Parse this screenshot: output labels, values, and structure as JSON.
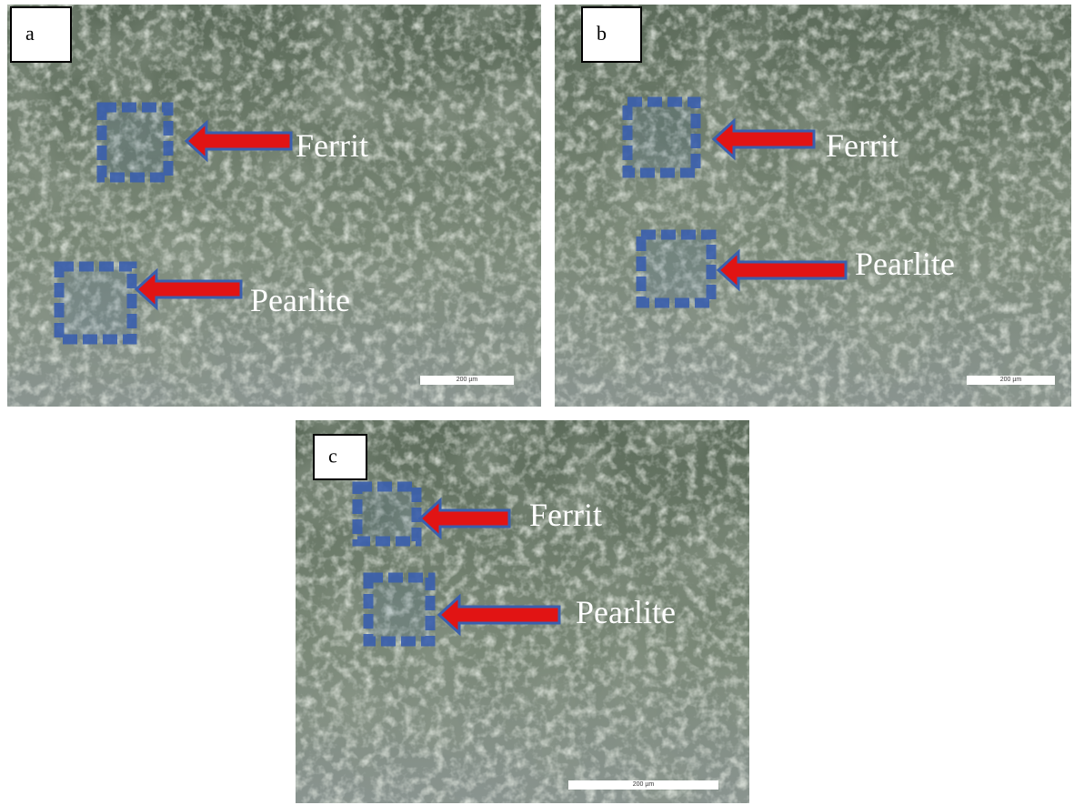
{
  "panels": [
    {
      "label": "a",
      "annotations": [
        {
          "text": "Ferrit"
        },
        {
          "text": "Pearlite"
        }
      ],
      "scale_bar": "200 µm"
    },
    {
      "label": "b",
      "annotations": [
        {
          "text": "Ferrit"
        },
        {
          "text": "Pearlite"
        }
      ],
      "scale_bar": "200 µm"
    },
    {
      "label": "c",
      "annotations": [
        {
          "text": "Ferrit"
        },
        {
          "text": "Pearlite"
        }
      ],
      "scale_bar": "200 µm"
    }
  ]
}
